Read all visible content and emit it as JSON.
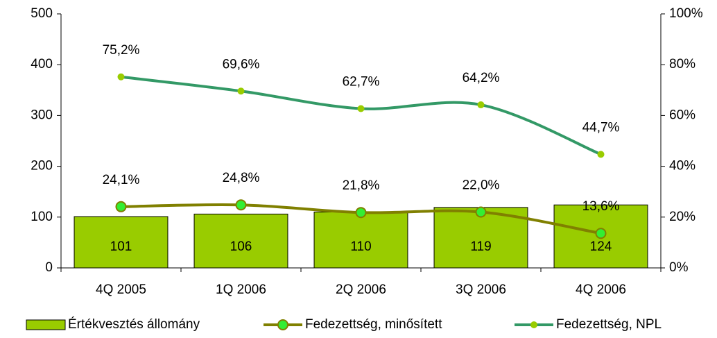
{
  "chart_data": {
    "type": "bar",
    "categories": [
      "4Q 2005",
      "1Q 2006",
      "2Q 2006",
      "3Q 2006",
      "4Q 2006"
    ],
    "series": [
      {
        "name": "Értékvesztés állomány",
        "type": "bar",
        "color": "#99cc00",
        "values": [
          101,
          106,
          110,
          119,
          124
        ]
      },
      {
        "name": "Fedezettség, minősített",
        "type": "line",
        "axis": "y2",
        "color": "#808000",
        "marker_color": "#33ee33",
        "values": [
          24.1,
          24.8,
          21.8,
          22.0,
          13.6
        ],
        "value_labels": [
          "24,1%",
          "24,8%",
          "21,8%",
          "22,0%",
          "13,6%"
        ]
      },
      {
        "name": "Fedezettség, NPL",
        "type": "line",
        "axis": "y2",
        "color": "#339966",
        "marker_color": "#99cc00",
        "values": [
          75.2,
          69.6,
          62.7,
          64.2,
          44.7
        ],
        "value_labels": [
          "75,2%",
          "69,6%",
          "62,7%",
          "64,2%",
          "44,7%"
        ]
      }
    ],
    "ylim": [
      0,
      500
    ],
    "yticks": [
      0,
      100,
      200,
      300,
      400,
      500
    ],
    "y2lim": [
      0,
      100
    ],
    "y2ticks": [
      {
        "value": 0,
        "label": "0%"
      },
      {
        "value": 20,
        "label": "20%"
      },
      {
        "value": 40,
        "label": "40%"
      },
      {
        "value": 60,
        "label": "60%"
      },
      {
        "value": 80,
        "label": "80%"
      },
      {
        "value": 100,
        "label": "100%"
      }
    ],
    "legend": "bottom"
  }
}
